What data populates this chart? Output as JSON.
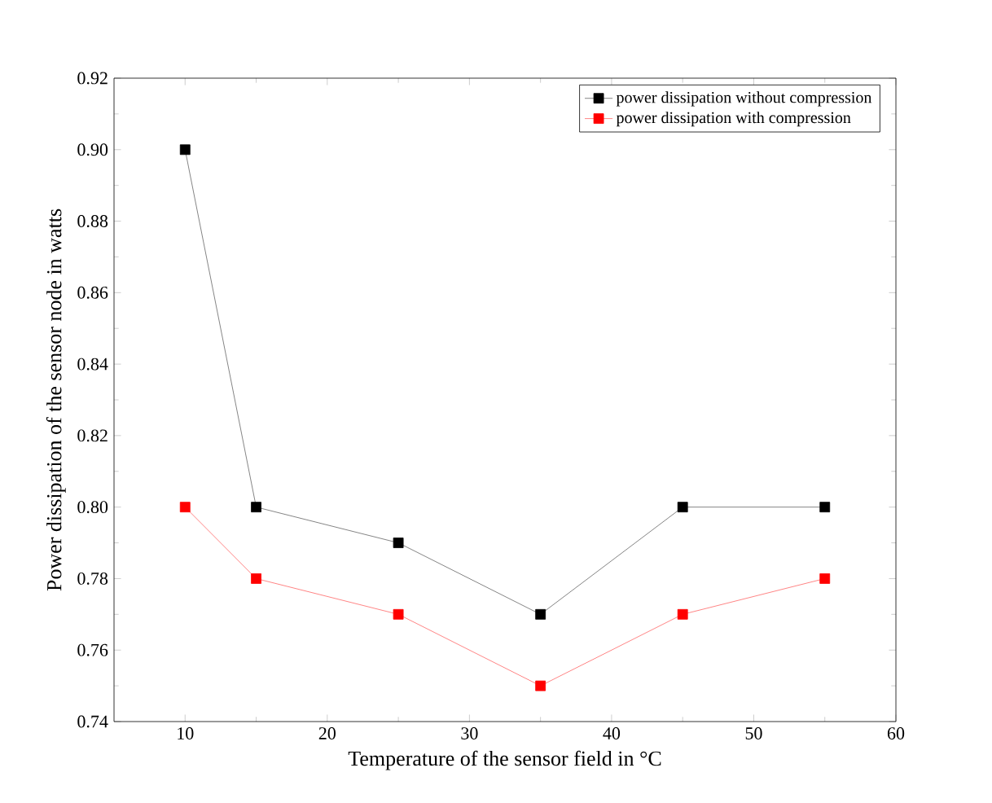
{
  "chart_data": {
    "type": "line",
    "xlabel": "Temperature of the sensor field in °C",
    "ylabel": "Power dissipation of the sensor node in watts",
    "x": [
      10,
      15,
      25,
      35,
      45,
      55
    ],
    "series": [
      {
        "name": "power dissipation without compression",
        "color": "#000000",
        "values": [
          0.9,
          0.8,
          0.79,
          0.77,
          0.8,
          0.8
        ]
      },
      {
        "name": "power dissipation with compression",
        "color": "#ff0000",
        "values": [
          0.8,
          0.78,
          0.77,
          0.75,
          0.77,
          0.78
        ]
      }
    ],
    "xlim": [
      5,
      60
    ],
    "xticks": [
      10,
      20,
      30,
      40,
      50,
      60
    ],
    "ylim": [
      0.74,
      0.92
    ],
    "yticks": [
      {
        "value": 0.74,
        "label": "0.74"
      },
      {
        "value": 0.76,
        "label": "0.76"
      },
      {
        "value": 0.78,
        "label": "0.78"
      },
      {
        "value": 0.8,
        "label": "0.80"
      },
      {
        "value": 0.82,
        "label": "0.82"
      },
      {
        "value": 0.84,
        "label": "0.84"
      },
      {
        "value": 0.86,
        "label": "0.86"
      },
      {
        "value": 0.88,
        "label": "0.88"
      },
      {
        "value": 0.9,
        "label": "0.90"
      },
      {
        "value": 0.92,
        "label": "0.92"
      }
    ],
    "legend": "top right",
    "marker": "square",
    "line_style": "solid",
    "grid": false
  }
}
